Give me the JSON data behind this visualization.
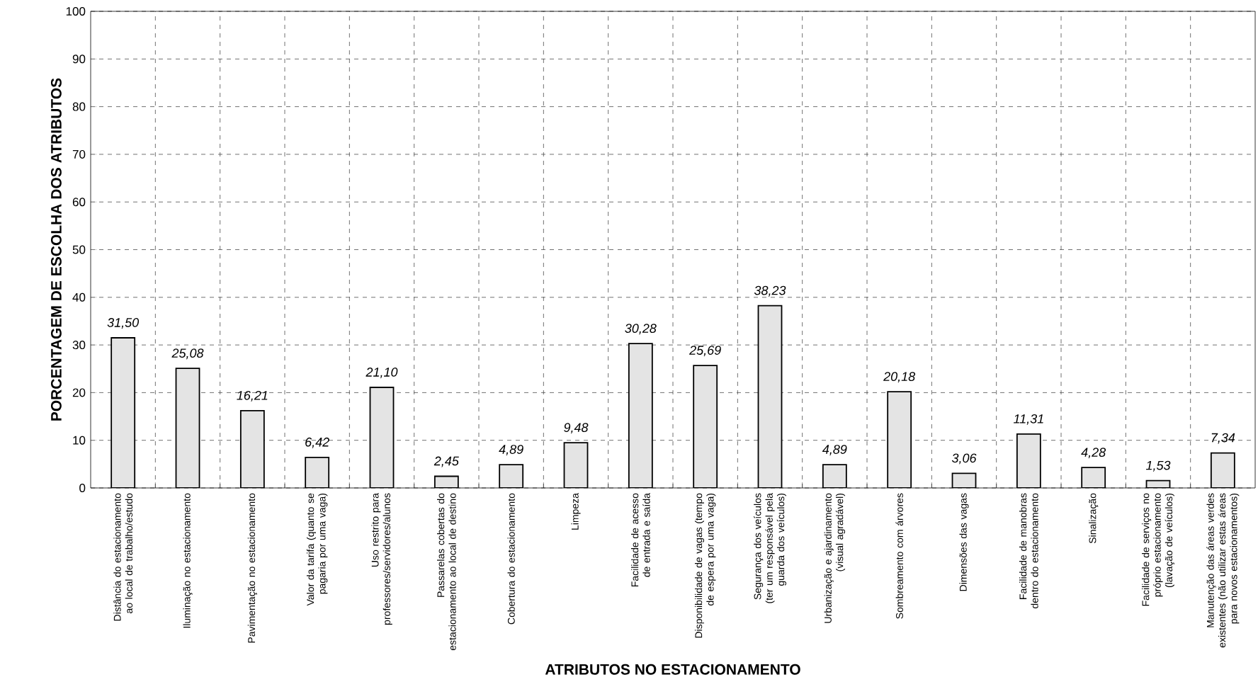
{
  "chart_data": {
    "type": "bar",
    "xlabel": "ATRIBUTOS NO ESTACIONAMENTO",
    "ylabel": "PORCENTAGEM DE ESCOLHA DOS ATRIBUTOS",
    "categories": [
      "Distância do estacionamento ao local de trabalho/estudo",
      "Iluminação no estacionamento",
      "Pavimentação no estacionamento",
      "Valor da tarifa (quanto se pagaria por uma vaga)",
      "Uso restrito para professores/servidores/alunos",
      "Passarelas cobertas do estacionamento ao local de destino",
      "Cobertura do estacionamento",
      "Limpeza",
      "Facilidade de acesso de entrada e saída",
      "Disponibilidade de vagas (tempo de espera por uma vaga)",
      "Segurança dos veículos (ter um responsável pela guarda dos veículos)",
      "Urbanização e ajardinamento (visual agradável)",
      "Sombreamento com árvores",
      "Dimensões das vagas",
      "Facilidade de manobras dentro do estacionamento",
      "Sinalização",
      "Facilidade de serviços no próprio estacionamento (lavação de veículos)",
      "Manutenção das áreas verdes existentes (não utilizar estas áreas para novos estacionamentos)"
    ],
    "values": [
      31.5,
      25.08,
      16.21,
      6.42,
      21.1,
      2.45,
      4.89,
      9.48,
      30.28,
      25.69,
      38.23,
      4.89,
      20.18,
      3.06,
      11.31,
      4.28,
      1.53,
      7.34
    ],
    "value_labels": [
      "31,50",
      "25,08",
      "16,21",
      "6,42",
      "21,10",
      "2,45",
      "4,89",
      "9,48",
      "30,28",
      "25,69",
      "38,23",
      "4,89",
      "20,18",
      "3,06",
      "11,31",
      "4,28",
      "1,53",
      "7,34"
    ],
    "color": "#e4e4e4",
    "ylim": [
      0,
      100
    ],
    "yticks": [
      0,
      10,
      20,
      30,
      40,
      50,
      60,
      70,
      80,
      90,
      100
    ],
    "grid": true
  }
}
